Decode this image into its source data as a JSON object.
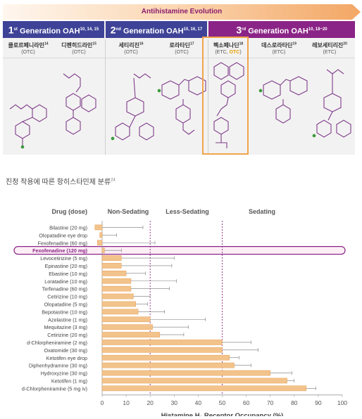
{
  "banner": {
    "title": "Antihistamine Evolution"
  },
  "generations": [
    {
      "ordinal": "1",
      "suffix": "st",
      "label": "Generation OAH",
      "refs": "10, 14, 15"
    },
    {
      "ordinal": "2",
      "suffix": "nd",
      "label": "Generation OAH",
      "refs": "10, 16, 17"
    },
    {
      "ordinal": "3",
      "suffix": "rd",
      "label": "Generation OAH",
      "refs": "10, 18~20"
    }
  ],
  "drugs": [
    {
      "name": "클로르페니라민",
      "ref": "14",
      "type": "(OTC)"
    },
    {
      "name": "디펜히드라민",
      "ref": "15",
      "type": "(OTC)"
    },
    {
      "name": "세티리진",
      "ref": "16",
      "type": "(OTC)"
    },
    {
      "name": "로라타딘",
      "ref": "17",
      "type": "(OTC)"
    },
    {
      "name": "펙소페나딘",
      "ref": "18",
      "type_pre": "(ETC, ",
      "type_hl": "OTC",
      "type_post": ")"
    },
    {
      "name": "데스로라타딘",
      "ref": "19",
      "type": "(ETC)"
    },
    {
      "name": "레보세티리진",
      "ref": "20",
      "type": "(ETC)"
    }
  ],
  "caption": {
    "text": "진정 작용에 따른 항히스타민제 분류",
    "ref": "24"
  },
  "colors": {
    "gen12": "#3e4397",
    "gen3": "#8b2487",
    "bar": "#f2c38b",
    "bar_edge": "#e8a25a",
    "highlight": "#8b2487",
    "divider": "#8b2487"
  },
  "chart_data": {
    "type": "bar",
    "orientation": "horizontal",
    "xlabel": "Histamine H1 Receptor Occupancy (%)",
    "xlim": [
      0,
      100
    ],
    "xticks": [
      0,
      10,
      20,
      30,
      40,
      50,
      60,
      70,
      80,
      90,
      100
    ],
    "category_header": "Drug (dose)",
    "zones": [
      {
        "label": "Non-Sedating",
        "range": [
          0,
          20
        ]
      },
      {
        "label": "Less-Sedating",
        "range": [
          20,
          50
        ]
      },
      {
        "label": "Sedating",
        "range": [
          50,
          100
        ]
      }
    ],
    "divider_lines": [
      20,
      50
    ],
    "highlighted_category": "Fexofenadine (120 mg)",
    "categories": [
      "Bilastine (20 mg)",
      "Olopatadine eye drop",
      "Fexofenadine (60 mg)",
      "Fexofenadine (120 mg)",
      "Levocetirizine (5 mg)",
      "Epinastine (20 mg)",
      "Ebastine (10 mg)",
      "Loratadine (10 mg)",
      "Terfenadine (60 mg)",
      "Cetirizine (10 mg)",
      "Olopatadine (5 mg)",
      "Bepotastine (10 mg)",
      "Azelastine (1 mg)",
      "Mequitazine (3 mg)",
      "Cetirizine (20 mg)",
      "d-Chlorpheniramine (2 mg)",
      "Oxatomide (30 mg)",
      "Ketotifen eye drop",
      "Diphenhydramine (30 mg)",
      "Hydroxyzine (30 mg)",
      "Ketotifen (1 mg)",
      "d-Chlorpheniramine (5 mg iv)"
    ],
    "values": [
      -3,
      -1,
      -2,
      1,
      8,
      8,
      10,
      12,
      12,
      13,
      14,
      15,
      20,
      21,
      24,
      50,
      50,
      53,
      55,
      70,
      77,
      85
    ],
    "error_high": [
      17,
      6,
      22,
      8,
      30,
      29,
      18,
      31,
      28,
      20,
      19,
      26,
      43,
      36,
      34,
      62,
      65,
      57,
      62,
      79,
      80,
      89
    ]
  }
}
